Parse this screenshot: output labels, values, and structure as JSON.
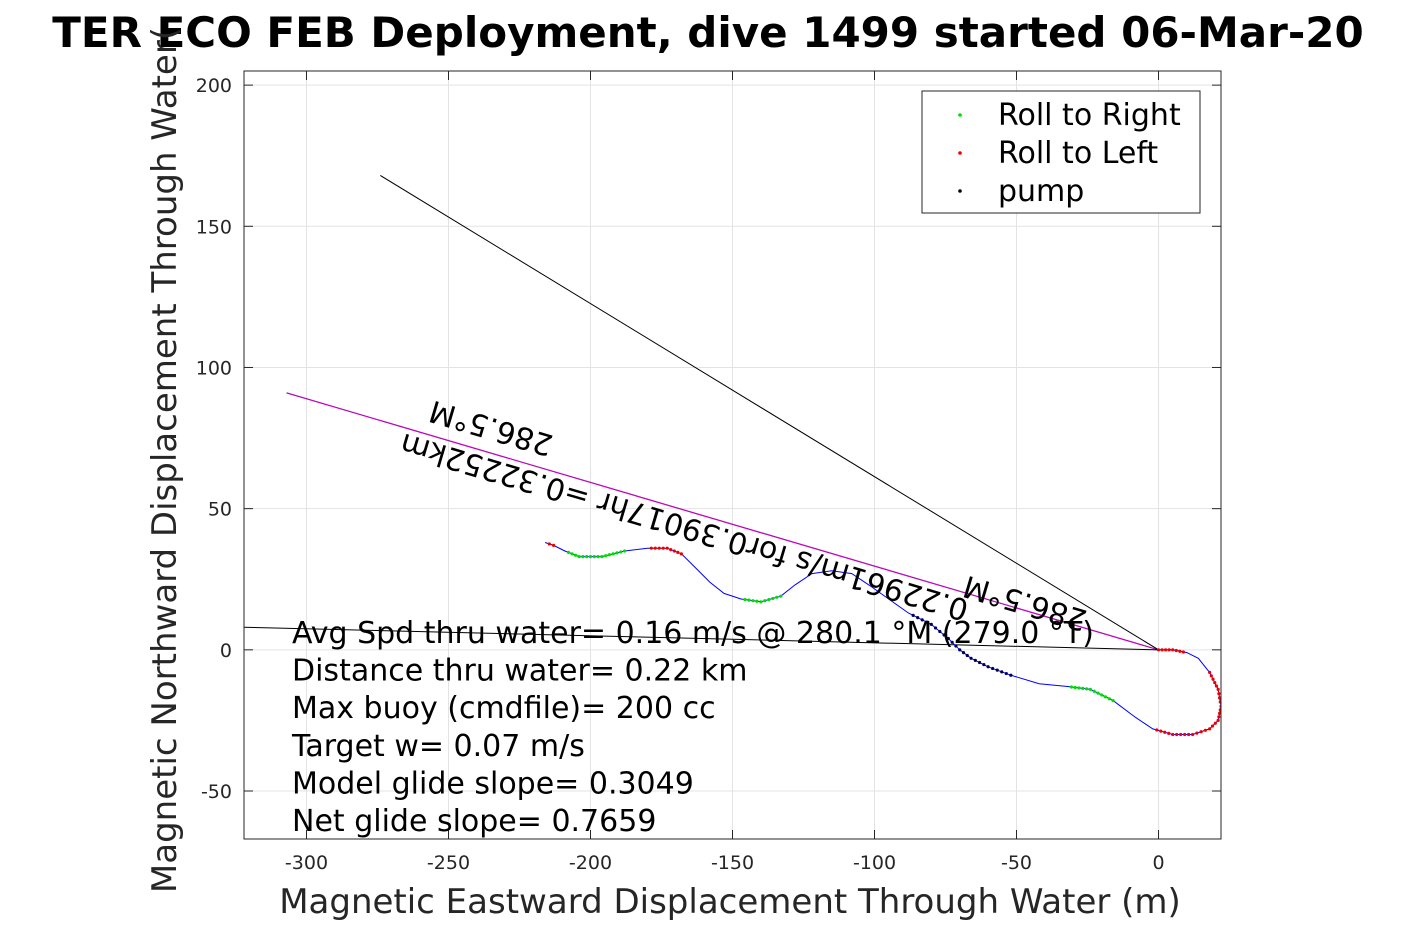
{
  "chart_data": {
    "type": "scatter",
    "title": "TER ECO FEB Deployment, dive 1499 started 06-Mar-20",
    "xlabel": "Magnetic Eastward Displacement Through Water (m)",
    "ylabel": "Magnetic Northward Displacement Through Water(",
    "xlim": [
      -322,
      22
    ],
    "ylim": [
      -67,
      205
    ],
    "xticks": [
      -300,
      -250,
      -200,
      -150,
      -100,
      -50,
      0
    ],
    "yticks": [
      -50,
      0,
      50,
      100,
      150,
      200
    ],
    "grid": true,
    "legend_position": "top-right",
    "legend": [
      {
        "label": "Roll to Right",
        "color": "#00dd00"
      },
      {
        "label": "Roll to Left",
        "color": "#ee0000"
      },
      {
        "label": "pump",
        "color": "#000000"
      }
    ],
    "colors": {
      "track": "#0000ff",
      "heading_line": "#cc00cc",
      "reference_lines": "#000000",
      "pump_points": "#000055"
    },
    "track": [
      [
        0,
        0
      ],
      [
        5,
        0
      ],
      [
        10,
        -1
      ],
      [
        14,
        -3
      ],
      [
        18,
        -8
      ],
      [
        21,
        -14
      ],
      [
        22,
        -20
      ],
      [
        21,
        -25
      ],
      [
        18,
        -28
      ],
      [
        12,
        -30
      ],
      [
        5,
        -30
      ],
      [
        -2,
        -28
      ],
      [
        -8,
        -24
      ],
      [
        -16,
        -18
      ],
      [
        -24,
        -14
      ],
      [
        -32,
        -13
      ],
      [
        -42,
        -12
      ],
      [
        -52,
        -9
      ],
      [
        -60,
        -6
      ],
      [
        -66,
        -3
      ],
      [
        -70,
        0
      ],
      [
        -74,
        4
      ],
      [
        -80,
        9
      ],
      [
        -88,
        13
      ],
      [
        -95,
        18
      ],
      [
        -102,
        23
      ],
      [
        -108,
        27
      ],
      [
        -115,
        28
      ],
      [
        -122,
        27
      ],
      [
        -128,
        23
      ],
      [
        -133,
        19
      ],
      [
        -140,
        17
      ],
      [
        -147,
        18
      ],
      [
        -153,
        20
      ],
      [
        -158,
        24
      ],
      [
        -163,
        29
      ],
      [
        -168,
        34
      ],
      [
        -173,
        36
      ],
      [
        -180,
        36
      ],
      [
        -188,
        35
      ],
      [
        -196,
        33
      ],
      [
        -204,
        33
      ],
      [
        -209,
        35
      ],
      [
        -213,
        37
      ],
      [
        -216,
        38
      ]
    ],
    "roll_right_segments": [
      [
        -35,
        -13,
        -16,
        -18
      ],
      [
        -150,
        18,
        -136,
        17
      ],
      [
        -208,
        35,
        -190,
        35
      ],
      [
        -97,
        17,
        -93,
        16
      ]
    ],
    "roll_left_segments": [
      [
        0,
        0,
        12,
        -2
      ],
      [
        17,
        -7,
        22,
        -25
      ],
      [
        20,
        -25,
        5,
        -30
      ],
      [
        4,
        -30,
        -5,
        -27
      ],
      [
        -180,
        36,
        -166,
        33
      ],
      [
        -216,
        38,
        -214,
        37
      ]
    ],
    "pump_segments": [
      [
        -92,
        13,
        -50,
        -9
      ]
    ],
    "lines": [
      {
        "name": "heading",
        "from": [
          -307,
          91
        ],
        "to": [
          0,
          0
        ],
        "color": "#cc00cc"
      },
      {
        "name": "reference-1",
        "from": [
          -274,
          168
        ],
        "to": [
          0,
          0
        ],
        "color": "#000000"
      },
      {
        "name": "reference-2",
        "from": [
          -322,
          8
        ],
        "to": [
          0,
          0
        ],
        "color": "#000000"
      }
    ],
    "annotations": [
      {
        "text": "286.5°M",
        "x": -234,
        "y": 82,
        "rotate": 196.5
      },
      {
        "text": "0.22961m/s for0.39017hr =0.32252km",
        "x": -166,
        "y": 47,
        "rotate": 196.5
      },
      {
        "text": "286.5°M",
        "x": -46,
        "y": 20,
        "rotate": 196.5
      }
    ],
    "stats": [
      "Avg Spd thru water=  0.16 m/s @ 280.1 °M (279.0 °T)",
      "Distance thru water=  0.22 km",
      "Max buoy (cmdfile)= 200 cc",
      "Target w= 0.07 m/s",
      "Model glide slope= 0.3049",
      "Net glide slope= 0.7659"
    ]
  }
}
